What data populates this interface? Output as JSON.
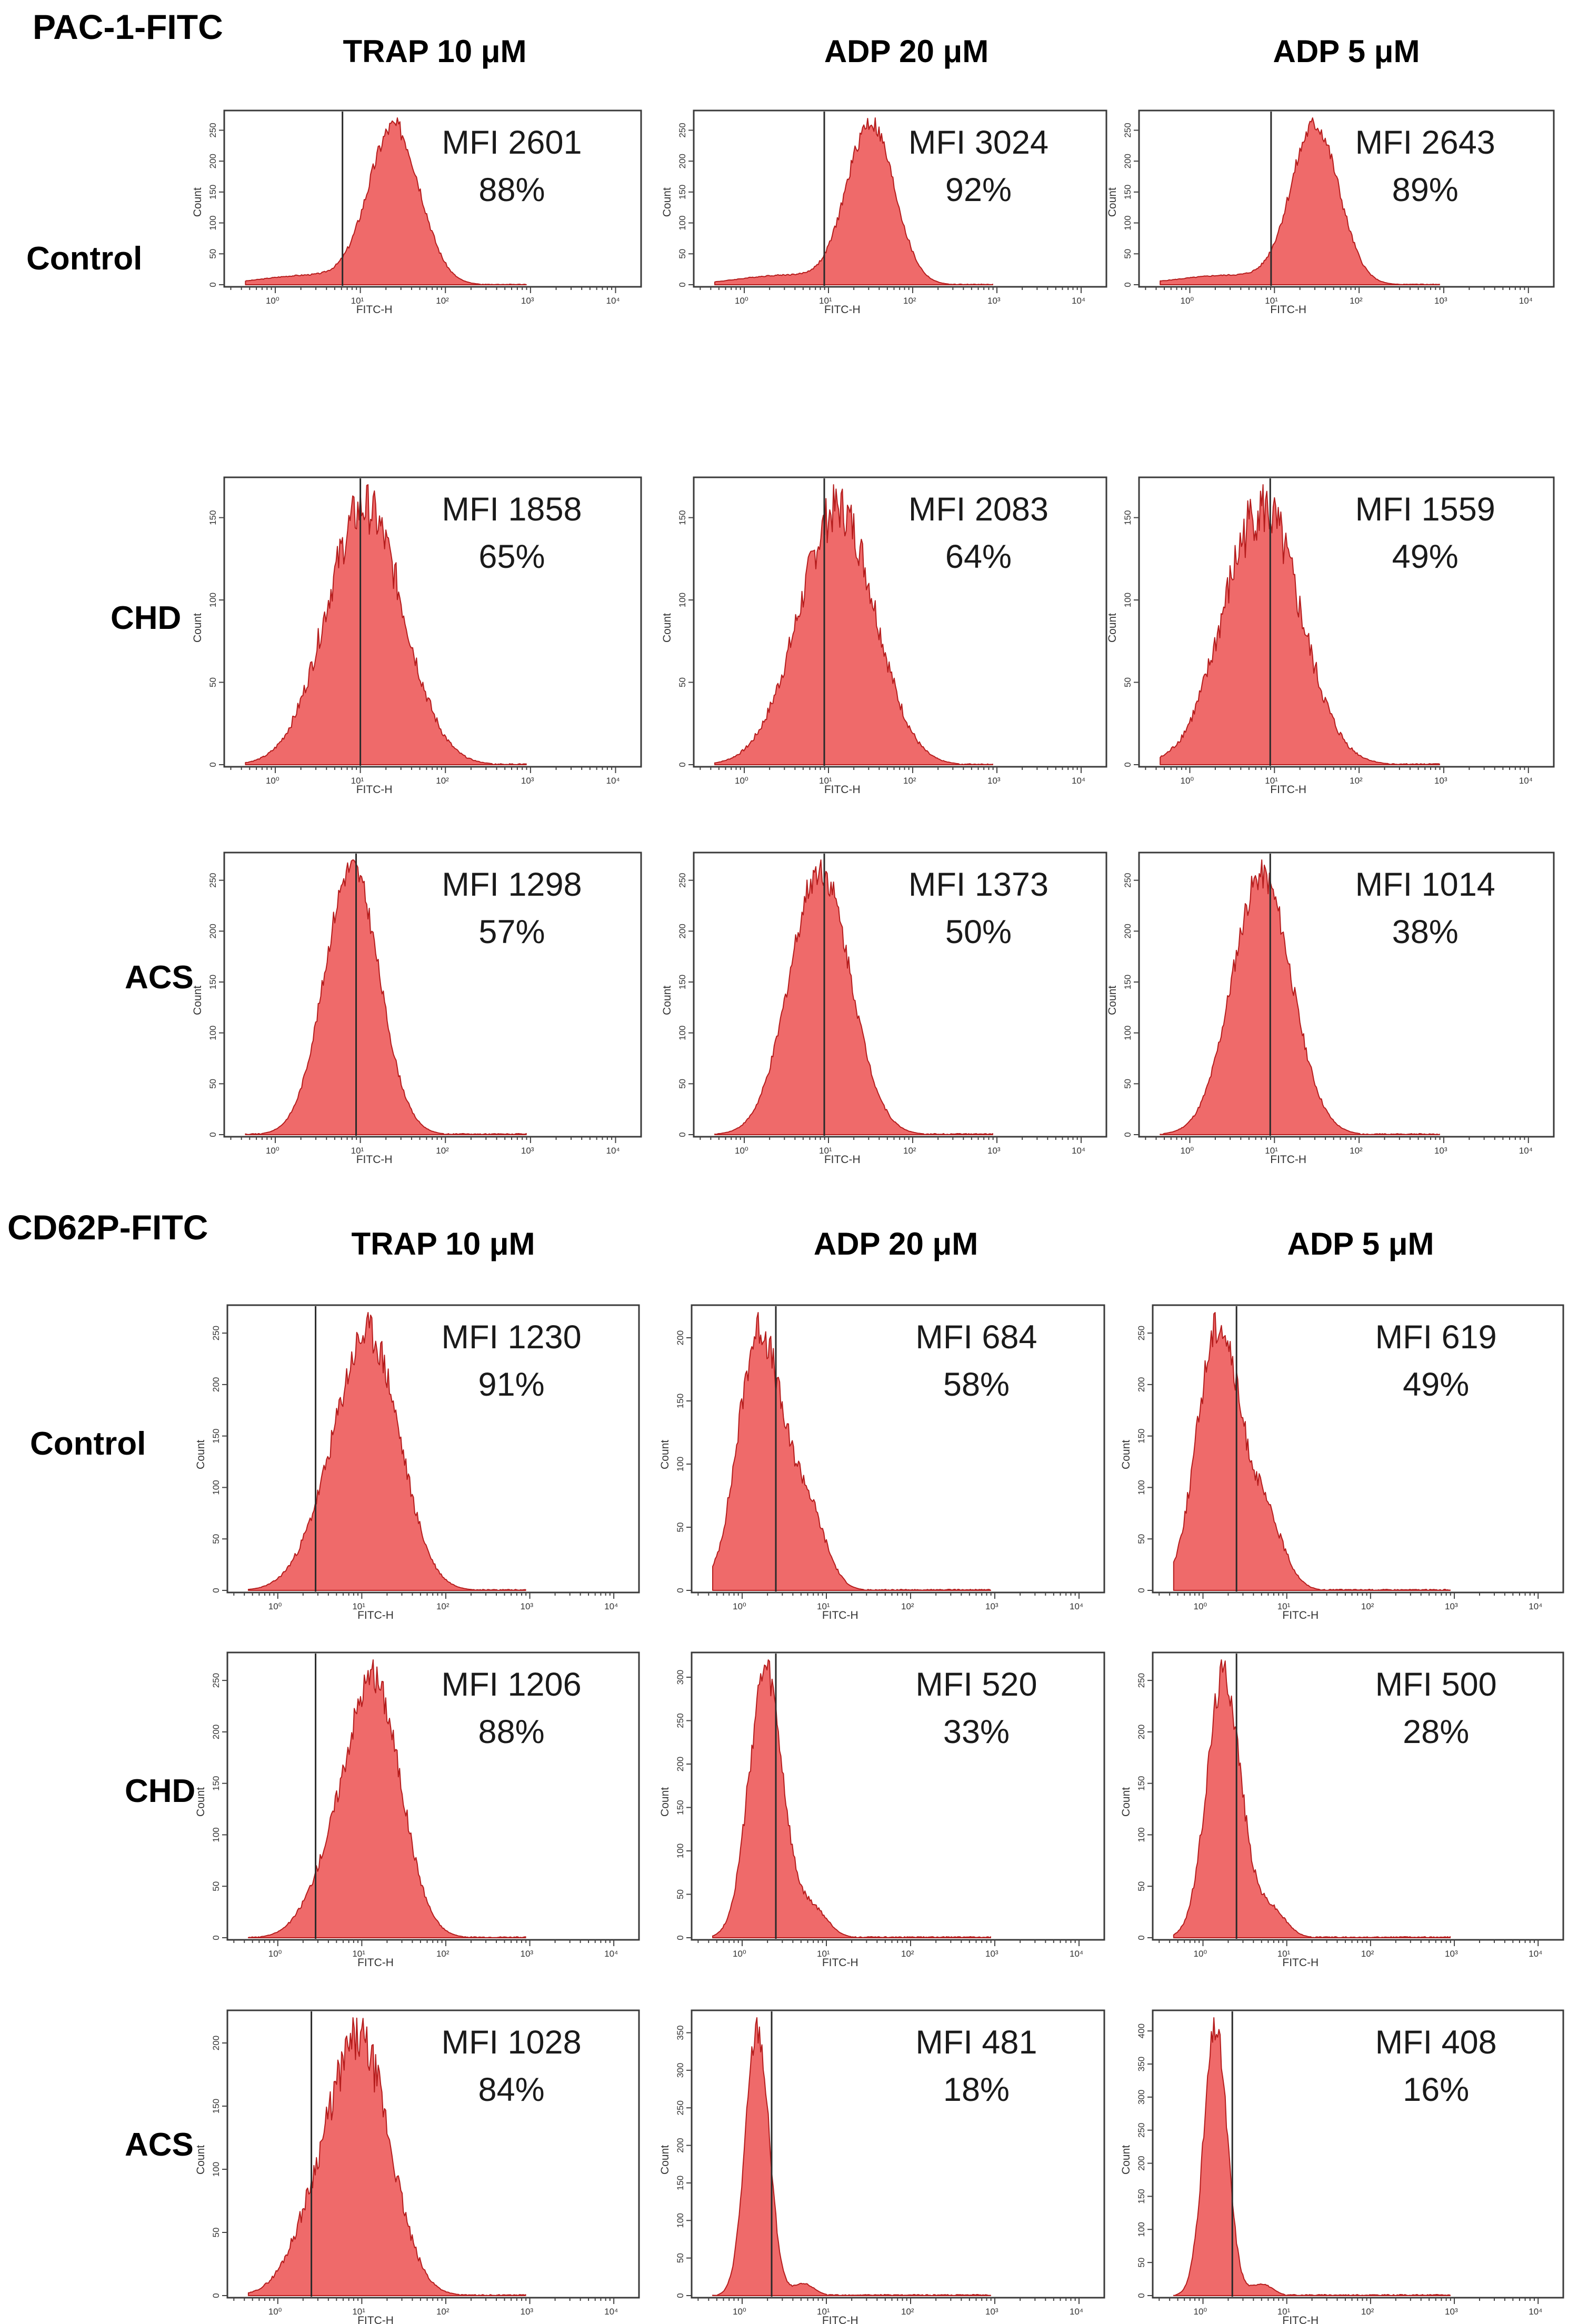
{
  "chart_data": [
    {
      "type": "histogram-grid",
      "title": "PAC-1-FITC",
      "columns": [
        "TRAP 10 μM",
        "ADP 20 μM",
        "ADP 5 μM"
      ],
      "rows": [
        "Control",
        "CHD",
        "ACS"
      ],
      "xlabel": "FITC-H",
      "ylabel": "Count",
      "x_ticks": [
        "10⁰",
        "10¹",
        "10²",
        "10³",
        "10⁴"
      ],
      "panels": [
        {
          "row": "Control",
          "column": "TRAP 10 μM",
          "mfi_label": "MFI 2601",
          "pct_label": "88%",
          "mfi": 2601,
          "percent_positive": 88,
          "y_ticks": [
            "0",
            "50",
            "100",
            "150",
            "200",
            "250"
          ],
          "gate_x": 0.79,
          "peak_x": 1.4,
          "spread": 0.3,
          "broad": 0.55,
          "shoulder": 0.0,
          "noise": 0.06
        },
        {
          "row": "Control",
          "column": "ADP 20 μM",
          "mfi_label": "MFI 3024",
          "pct_label": "92%",
          "mfi": 3024,
          "percent_positive": 92,
          "y_ticks": [
            "0",
            "50",
            "100",
            "150",
            "200",
            "250"
          ],
          "gate_x": 0.95,
          "peak_x": 1.5,
          "spread": 0.28,
          "broad": 0.55,
          "shoulder": 0.0,
          "noise": 0.06
        },
        {
          "row": "Control",
          "column": "ADP 5 μM",
          "mfi_label": "MFI 2643",
          "pct_label": "89%",
          "mfi": 2643,
          "percent_positive": 89,
          "y_ticks": [
            "0",
            "50",
            "100",
            "150",
            "200",
            "250"
          ],
          "gate_x": 0.96,
          "peak_x": 1.48,
          "spread": 0.28,
          "broad": 0.6,
          "shoulder": 0.0,
          "noise": 0.06
        },
        {
          "row": "CHD",
          "column": "TRAP 10 μM",
          "mfi_label": "MFI 1858",
          "pct_label": "65%",
          "mfi": 1858,
          "percent_positive": 65,
          "y_ticks": [
            "0",
            "50",
            "100",
            "150"
          ],
          "gate_x": 1.0,
          "peak_x": 1.05,
          "spread": 0.45,
          "broad": 0.0,
          "shoulder": 0.0,
          "noise": 0.1
        },
        {
          "row": "CHD",
          "column": "ADP 20 μM",
          "mfi_label": "MFI 2083",
          "pct_label": "64%",
          "mfi": 2083,
          "percent_positive": 64,
          "y_ticks": [
            "0",
            "50",
            "100",
            "150"
          ],
          "gate_x": 0.95,
          "peak_x": 1.15,
          "spread": 0.42,
          "broad": 0.0,
          "shoulder": 0.25,
          "noise": 0.1
        },
        {
          "row": "CHD",
          "column": "ADP 5 μM",
          "mfi_label": "MFI 1559",
          "pct_label": "49%",
          "mfi": 1559,
          "percent_positive": 49,
          "y_ticks": [
            "0",
            "50",
            "100",
            "150"
          ],
          "gate_x": 0.95,
          "peak_x": 0.85,
          "spread": 0.45,
          "broad": 0.0,
          "shoulder": 0.0,
          "noise": 0.12
        },
        {
          "row": "ACS",
          "column": "TRAP 10 μM",
          "mfi_label": "MFI 1298",
          "pct_label": "57%",
          "mfi": 1298,
          "percent_positive": 57,
          "y_ticks": [
            "0",
            "50",
            "100",
            "150",
            "200",
            "250"
          ],
          "gate_x": 0.95,
          "peak_x": 0.9,
          "spread": 0.32,
          "broad": 0.0,
          "shoulder": 0.0,
          "noise": 0.05
        },
        {
          "row": "ACS",
          "column": "ADP 20 μM",
          "mfi_label": "MFI 1373",
          "pct_label": "50%",
          "mfi": 1373,
          "percent_positive": 50,
          "y_ticks": [
            "0",
            "50",
            "100",
            "150",
            "200",
            "250"
          ],
          "gate_x": 0.95,
          "peak_x": 0.9,
          "spread": 0.36,
          "broad": 0.0,
          "shoulder": 0.0,
          "noise": 0.06
        },
        {
          "row": "ACS",
          "column": "ADP 5 μM",
          "mfi_label": "MFI 1014",
          "pct_label": "38%",
          "mfi": 1014,
          "percent_positive": 38,
          "y_ticks": [
            "0",
            "50",
            "100",
            "150",
            "200",
            "250"
          ],
          "gate_x": 0.95,
          "peak_x": 0.85,
          "spread": 0.35,
          "broad": 0.0,
          "shoulder": 0.0,
          "noise": 0.06
        }
      ]
    },
    {
      "type": "histogram-grid",
      "title": "CD62P-FITC",
      "columns": [
        "TRAP 10 μM",
        "ADP 20 μM",
        "ADP 5 μM"
      ],
      "rows": [
        "Control",
        "CHD",
        "ACS"
      ],
      "xlabel": "FITC-H",
      "ylabel": "Count",
      "x_ticks": [
        "10⁰",
        "10¹",
        "10²",
        "10³",
        "10⁴"
      ],
      "panels": [
        {
          "row": "Control",
          "column": "TRAP 10 μM",
          "mfi_label": "MFI 1230",
          "pct_label": "91%",
          "mfi": 1230,
          "percent_positive": 91,
          "y_ticks": [
            "0",
            "50",
            "100",
            "150",
            "200",
            "250"
          ],
          "gate_x": 0.45,
          "peak_x": 1.1,
          "spread": 0.36,
          "broad": 0.0,
          "shoulder": 0.3,
          "noise": 0.08
        },
        {
          "row": "Control",
          "column": "ADP 20 μM",
          "mfi_label": "MFI 684",
          "pct_label": "58%",
          "mfi": 684,
          "percent_positive": 58,
          "y_ticks": [
            "0",
            "50",
            "100",
            "150",
            "200"
          ],
          "gate_x": 0.4,
          "peak_x": 0.2,
          "spread": 0.25,
          "broad": 0.0,
          "shoulder": 0.6,
          "noise": 0.08
        },
        {
          "row": "Control",
          "column": "ADP 5 μM",
          "mfi_label": "MFI 619",
          "pct_label": "49%",
          "mfi": 619,
          "percent_positive": 49,
          "y_ticks": [
            "0",
            "50",
            "100",
            "150",
            "200",
            "250"
          ],
          "gate_x": 0.4,
          "peak_x": 0.18,
          "spread": 0.25,
          "broad": 0.0,
          "shoulder": 0.5,
          "noise": 0.08
        },
        {
          "row": "CHD",
          "column": "TRAP 10 μM",
          "mfi_label": "MFI 1206",
          "pct_label": "88%",
          "mfi": 1206,
          "percent_positive": 88,
          "y_ticks": [
            "0",
            "50",
            "100",
            "150",
            "200",
            "250"
          ],
          "gate_x": 0.45,
          "peak_x": 1.15,
          "spread": 0.32,
          "broad": 0.0,
          "shoulder": 0.35,
          "noise": 0.07
        },
        {
          "row": "CHD",
          "column": "ADP 20 μM",
          "mfi_label": "MFI 520",
          "pct_label": "33%",
          "mfi": 520,
          "percent_positive": 33,
          "y_ticks": [
            "0",
            "50",
            "100",
            "150",
            "200",
            "250",
            "300"
          ],
          "gate_x": 0.4,
          "peak_x": 0.28,
          "spread": 0.2,
          "broad": 0.0,
          "shoulder": 0.2,
          "noise": 0.07
        },
        {
          "row": "CHD",
          "column": "ADP 5 μM",
          "mfi_label": "MFI 500",
          "pct_label": "28%",
          "mfi": 500,
          "percent_positive": 28,
          "y_ticks": [
            "0",
            "50",
            "100",
            "150",
            "200",
            "250"
          ],
          "gate_x": 0.4,
          "peak_x": 0.25,
          "spread": 0.2,
          "broad": 0.0,
          "shoulder": 0.2,
          "noise": 0.07
        },
        {
          "row": "ACS",
          "column": "TRAP 10 μM",
          "mfi_label": "MFI 1028",
          "pct_label": "84%",
          "mfi": 1028,
          "percent_positive": 84,
          "y_ticks": [
            "0",
            "50",
            "100",
            "150",
            "200"
          ],
          "gate_x": 0.4,
          "peak_x": 1.0,
          "spread": 0.35,
          "broad": 0.0,
          "shoulder": 0.45,
          "noise": 0.1
        },
        {
          "row": "ACS",
          "column": "ADP 20 μM",
          "mfi_label": "MFI 481",
          "pct_label": "18%",
          "mfi": 481,
          "percent_positive": 18,
          "y_ticks": [
            "0",
            "50",
            "100",
            "150",
            "200",
            "250",
            "300",
            "350"
          ],
          "gate_x": 0.35,
          "peak_x": 0.18,
          "spread": 0.14,
          "broad": 0.0,
          "shoulder": 0.08,
          "noise": 0.06
        },
        {
          "row": "ACS",
          "column": "ADP 5 μM",
          "mfi_label": "MFI 408",
          "pct_label": "16%",
          "mfi": 408,
          "percent_positive": 16,
          "y_ticks": [
            "0",
            "50",
            "100",
            "150",
            "200",
            "250",
            "300",
            "350",
            "400"
          ],
          "gate_x": 0.35,
          "peak_x": 0.15,
          "spread": 0.14,
          "broad": 0.0,
          "shoulder": 0.08,
          "noise": 0.06
        }
      ]
    }
  ]
}
